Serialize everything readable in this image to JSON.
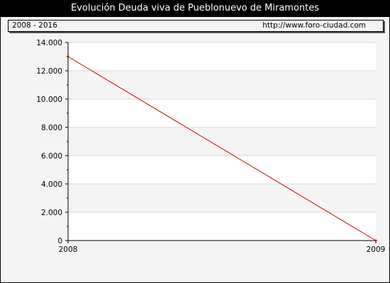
{
  "header": {
    "title": "Evolución Deuda viva de Pueblonuevo de Miramontes"
  },
  "infobar": {
    "period": "2008 - 2016",
    "source": "http://www.foro-ciudad.com"
  },
  "colors": {
    "line": "#cc0000",
    "band": "#f4f4f4",
    "grid": "#d8d8d8",
    "title_bg": "#000000"
  },
  "chart_data": {
    "type": "line",
    "title": "Evolución Deuda viva de Pueblonuevo de Miramontes",
    "xlabel": "",
    "ylabel": "",
    "x": [
      "2008",
      "2009"
    ],
    "series": [
      {
        "values": [
          13000,
          0
        ]
      }
    ],
    "ylim": [
      0,
      14000
    ],
    "yticks": [
      0,
      2000,
      4000,
      6000,
      8000,
      10000,
      12000,
      14000
    ],
    "ytick_labels": [
      "0",
      "2.000",
      "4.000",
      "6.000",
      "8.000",
      "10.000",
      "12.000",
      "14.000"
    ],
    "grid": true,
    "legend": "none"
  }
}
